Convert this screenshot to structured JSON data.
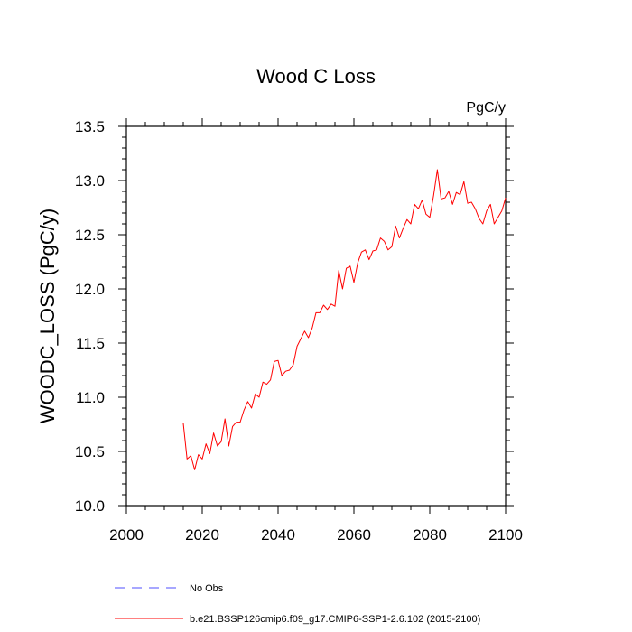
{
  "chart_data": {
    "type": "line",
    "title": "Wood C Loss",
    "units": "PgC/y",
    "xlabel": "",
    "ylabel": "WOODC_LOSS  (PgC/y)",
    "xlim": [
      2000,
      2100
    ],
    "ylim": [
      10.0,
      13.5
    ],
    "x_ticks": [
      2000,
      2020,
      2040,
      2060,
      2080,
      2100
    ],
    "x_tick_labels": [
      "2000",
      "2020",
      "2040",
      "2060",
      "2080",
      "2100"
    ],
    "y_ticks": [
      10.0,
      10.5,
      11.0,
      11.5,
      12.0,
      12.5,
      13.0,
      13.5
    ],
    "y_tick_labels": [
      "10.0",
      "10.5",
      "11.0",
      "11.5",
      "12.0",
      "12.5",
      "13.0",
      "13.5"
    ],
    "grid": false,
    "legend_position": "bottom",
    "series": [
      {
        "name": "b.e21.BSSP126cmip6.f09_g17.CMIP6-SSP1-2.6.102 (2015-2100)",
        "color": "#ff0000",
        "style": "solid",
        "x": [
          2015,
          2016,
          2017,
          2018,
          2019,
          2020,
          2021,
          2022,
          2023,
          2024,
          2025,
          2026,
          2027,
          2028,
          2029,
          2030,
          2031,
          2032,
          2033,
          2034,
          2035,
          2036,
          2037,
          2038,
          2039,
          2040,
          2041,
          2042,
          2043,
          2044,
          2045,
          2046,
          2047,
          2048,
          2049,
          2050,
          2051,
          2052,
          2053,
          2054,
          2055,
          2056,
          2057,
          2058,
          2059,
          2060,
          2061,
          2062,
          2063,
          2064,
          2065,
          2066,
          2067,
          2068,
          2069,
          2070,
          2071,
          2072,
          2073,
          2074,
          2075,
          2076,
          2077,
          2078,
          2079,
          2080,
          2081,
          2082,
          2083,
          2084,
          2085,
          2086,
          2087,
          2088,
          2089,
          2090,
          2091,
          2092,
          2093,
          2094,
          2095,
          2096,
          2097,
          2098,
          2099,
          2100
        ],
        "y": [
          10.76,
          10.43,
          10.46,
          10.33,
          10.47,
          10.43,
          10.57,
          10.48,
          10.67,
          10.55,
          10.59,
          10.8,
          10.55,
          10.73,
          10.77,
          10.77,
          10.88,
          10.96,
          10.9,
          11.03,
          11.0,
          11.14,
          11.12,
          11.16,
          11.33,
          11.34,
          11.2,
          11.24,
          11.25,
          11.3,
          11.47,
          11.54,
          11.61,
          11.55,
          11.64,
          11.78,
          11.78,
          11.85,
          11.81,
          11.86,
          11.84,
          12.17,
          12.0,
          12.19,
          12.21,
          12.06,
          12.24,
          12.34,
          12.36,
          12.27,
          12.35,
          12.36,
          12.47,
          12.44,
          12.36,
          12.39,
          12.58,
          12.47,
          12.56,
          12.64,
          12.6,
          12.78,
          12.74,
          12.82,
          12.69,
          12.66,
          12.86,
          13.1,
          12.83,
          12.84,
          12.9,
          12.78,
          12.89,
          12.87,
          12.99,
          12.79,
          12.8,
          12.74,
          12.65,
          12.6,
          12.72,
          12.78,
          12.6,
          12.66,
          12.72,
          12.84
        ]
      }
    ],
    "legend": [
      {
        "label": "No Obs",
        "color": "#4f4fff",
        "style": "dashed"
      },
      {
        "label": "b.e21.BSSP126cmip6.f09_g17.CMIP6-SSP1-2.6.102 (2015-2100)",
        "color": "#ff0000",
        "style": "solid"
      }
    ]
  }
}
